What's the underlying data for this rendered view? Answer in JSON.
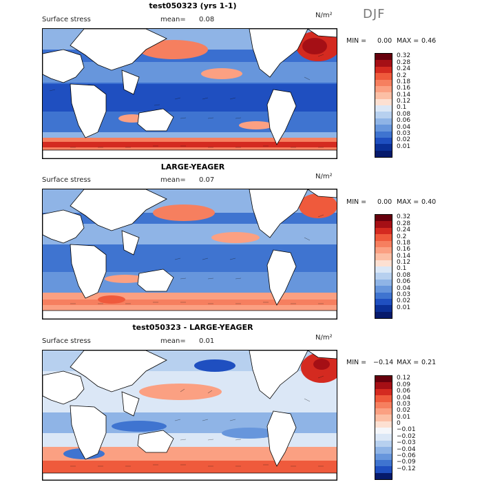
{
  "season": "DJF",
  "units": "N/m²",
  "panels": [
    {
      "title": "test050323 (yrs 1-1)",
      "variable": "Surface stress",
      "mean_label": "mean=",
      "mean_value": "0.08",
      "min_label": "MIN =",
      "min_value": "0.00",
      "max_label": "MAX =",
      "max_value": "0.46",
      "colorbar": {
        "labels": [
          "0.32",
          "0.28",
          "0.24",
          "0.2",
          "0.18",
          "0.16",
          "0.14",
          "0.12",
          "0.1",
          "0.08",
          "0.06",
          "0.04",
          "0.03",
          "0.02",
          "0.01"
        ],
        "colors": [
          "#67000d",
          "#a50f15",
          "#d42a20",
          "#ef5a3c",
          "#f67f5f",
          "#fba082",
          "#fcbfa5",
          "#fde0d2",
          "#dbe7f6",
          "#b7d0ef",
          "#8fb4e6",
          "#6796dc",
          "#3f74d0",
          "#1f4fc0",
          "#0a2f96",
          "#061a6b"
        ]
      },
      "regions": {
        "land_color": "#ffffff",
        "ocean_base": "#3a6fd0"
      }
    },
    {
      "title": "LARGE-YEAGER",
      "variable": "Surface stress",
      "mean_label": "mean=",
      "mean_value": "0.07",
      "min_label": "MIN =",
      "min_value": "0.00",
      "max_label": "MAX =",
      "max_value": "0.40",
      "colorbar": {
        "labels": [
          "0.32",
          "0.28",
          "0.24",
          "0.2",
          "0.18",
          "0.16",
          "0.14",
          "0.12",
          "0.1",
          "0.08",
          "0.06",
          "0.04",
          "0.03",
          "0.02",
          "0.01"
        ],
        "colors": [
          "#67000d",
          "#a50f15",
          "#d42a20",
          "#ef5a3c",
          "#f67f5f",
          "#fba082",
          "#fcbfa5",
          "#fde0d2",
          "#dbe7f6",
          "#b7d0ef",
          "#8fb4e6",
          "#6796dc",
          "#3f74d0",
          "#1f4fc0",
          "#0a2f96",
          "#061a6b"
        ]
      },
      "regions": {
        "land_color": "#ffffff",
        "ocean_base": "#3f74d0"
      }
    },
    {
      "title": "test050323 - LARGE-YEAGER",
      "variable": "Surface stress",
      "mean_label": "mean=",
      "mean_value": "0.01",
      "min_label": "MIN =",
      "min_value": "−0.14",
      "max_label": "MAX =",
      "max_value": "0.21",
      "colorbar": {
        "labels": [
          "0.12",
          "0.09",
          "0.06",
          "0.04",
          "0.03",
          "0.02",
          "0.01",
          "0",
          "−0.01",
          "−0.02",
          "−0.03",
          "−0.04",
          "−0.06",
          "−0.09",
          "−0.12"
        ],
        "colors": [
          "#67000d",
          "#a50f15",
          "#d42a20",
          "#ef5a3c",
          "#f67f5f",
          "#fba082",
          "#fcbfa5",
          "#fde0d2",
          "#f4f6fa",
          "#dbe7f6",
          "#b7d0ef",
          "#8fb4e6",
          "#6796dc",
          "#3f74d0",
          "#1f4fc0",
          "#061a6b"
        ]
      },
      "regions": {
        "land_color": "#ffffff",
        "ocean_base": "#b7d0ef"
      }
    }
  ]
}
